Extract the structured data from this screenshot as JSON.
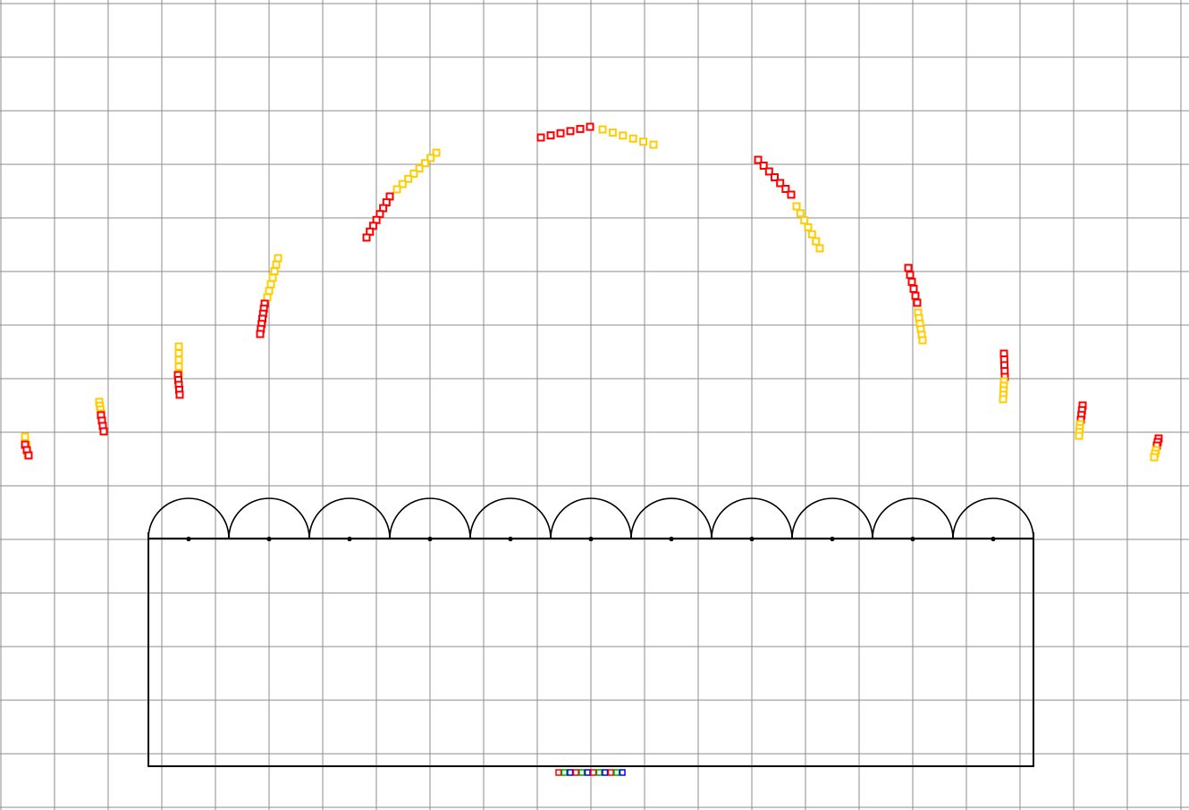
{
  "scene": {
    "colors": {
      "background": "#ffffff",
      "grid": "#8c8c8c",
      "outline": "#000000",
      "primary_view": "#ff0000",
      "secondary_view": "#ffcc00",
      "display_strip": [
        "#ff0000",
        "#00aa00",
        "#0000ff"
      ]
    },
    "lens_count": 11,
    "view_segments_per_lens": 2,
    "display_strip_pixels": 12
  }
}
